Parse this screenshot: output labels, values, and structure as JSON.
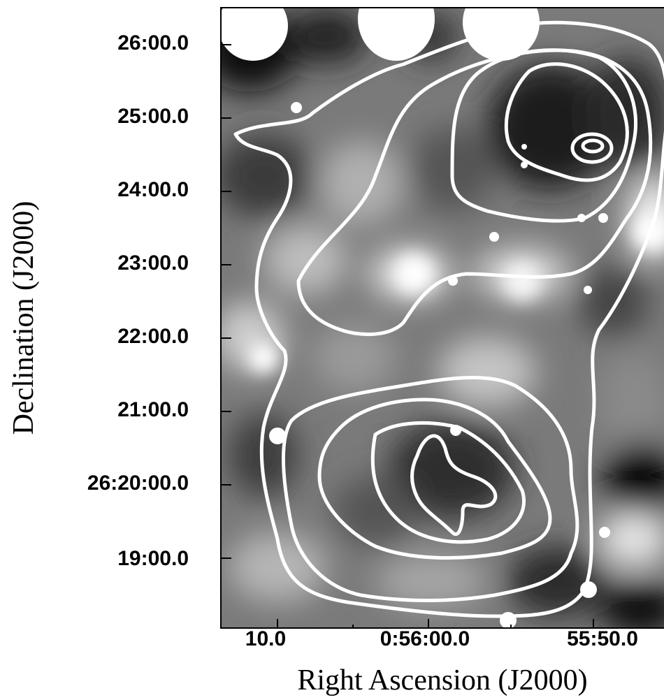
{
  "figure": {
    "xlabel": "Right Ascension (J2000)",
    "ylabel": "Declination (J2000)",
    "x_ticks": [
      "10.0",
      "0:56:00.0",
      "55:50.0"
    ],
    "y_ticks": [
      "26:00.0",
      "25:00.0",
      "24:00.0",
      "23:00.0",
      "22:00.0",
      "21:00.0",
      "26:20:00.0",
      "19:00.0"
    ],
    "image": {
      "type": "grayscale intensity map with white contour overlay",
      "colormap": "grayscale",
      "contour_color": "#ffffff",
      "background_tone": "#7b7b7b"
    }
  }
}
